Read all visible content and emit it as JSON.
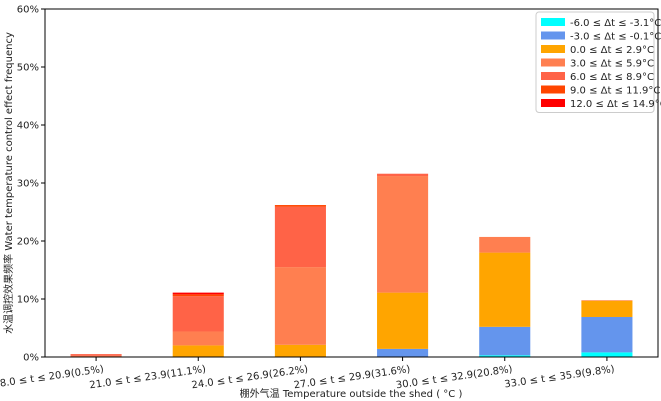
{
  "chart_data": {
    "type": "bar",
    "stacked": true,
    "categories": [
      "18.0 ≤ t ≤ 20.9(0.5%)",
      "21.0 ≤ t ≤ 23.9(11.1%)",
      "24.0 ≤ t ≤ 26.9(26.2%)",
      "27.0 ≤ t ≤ 29.9(31.6%)",
      "30.0 ≤ t ≤ 32.9(20.8%)",
      "33.0 ≤ t ≤ 35.9(9.8%)"
    ],
    "series": [
      {
        "name": "-6.0 ≤  Δt ≤ -3.1°C",
        "color": "#00ffff",
        "values": [
          0,
          0,
          0,
          0,
          0.3,
          0.8
        ]
      },
      {
        "name": "-3.0 ≤  Δt ≤ -0.1°C",
        "color": "#6495ed",
        "values": [
          0,
          0,
          0,
          1.4,
          4.9,
          6.1
        ]
      },
      {
        "name": "0.0 ≤  Δt ≤ 2.9°C",
        "color": "#ffa500",
        "values": [
          0,
          2.0,
          2.1,
          9.7,
          12.8,
          2.8
        ]
      },
      {
        "name": "3.0 ≤  Δt ≤ 5.9°C",
        "color": "#ff7f50",
        "values": [
          0.2,
          2.4,
          13.4,
          20.1,
          2.7,
          0.1
        ]
      },
      {
        "name": "6.0 ≤  Δt ≤ 8.9°C",
        "color": "#ff6347",
        "values": [
          0.3,
          6.1,
          10.4,
          0.4,
          0,
          0
        ]
      },
      {
        "name": "9.0 ≤  Δt ≤ 11.9°C",
        "color": "#ff4500",
        "values": [
          0,
          0.3,
          0.3,
          0,
          0,
          0
        ]
      },
      {
        "name": "12.0 ≤  Δt ≤ 14.9°C",
        "color": "#ff0000",
        "values": [
          0,
          0.3,
          0,
          0,
          0,
          0
        ]
      }
    ],
    "xlabel": "棚外气温 Temperature outside the shed ( °C )",
    "ylabel": "水温调控效果频率 Water temperature control effect frequency",
    "ylim": [
      0,
      60
    ],
    "yticks": [
      "0%",
      "10%",
      "20%",
      "30%",
      "40%",
      "50%",
      "60%"
    ],
    "legend_position": "top-right",
    "grid": false
  }
}
